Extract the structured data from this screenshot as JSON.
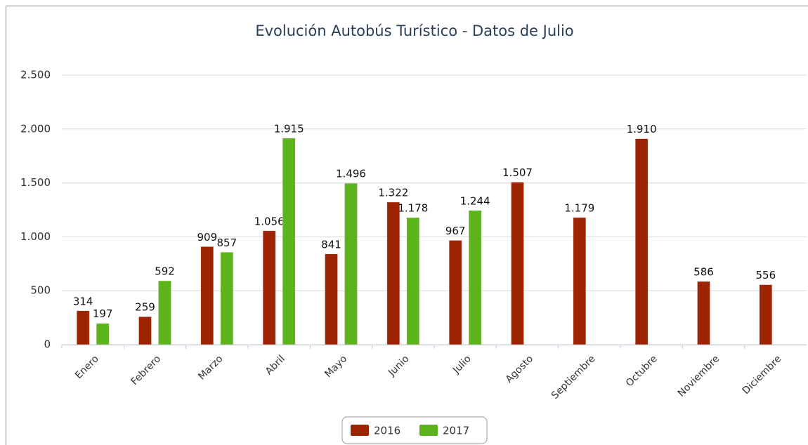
{
  "chart_data": {
    "type": "bar",
    "title": "Evolución Autobús Turístico - Datos de Julio",
    "categories": [
      "Enero",
      "Febrero",
      "Marzo",
      "Abril",
      "Mayo",
      "Junio",
      "Julio",
      "Agosto",
      "Septiembre",
      "Octubre",
      "Noviembre",
      "Diciembre"
    ],
    "series": [
      {
        "name": "2016",
        "color": "#9e2300",
        "values": [
          314,
          259,
          909,
          1056,
          841,
          1322,
          967,
          1507,
          1179,
          1910,
          586,
          556
        ],
        "value_labels": [
          "314",
          "259",
          "909",
          "1.056",
          "841",
          "1.322",
          "967",
          "1.507",
          "1.179",
          "1.910",
          "586",
          "556"
        ]
      },
      {
        "name": "2017",
        "color": "#5db31b",
        "values": [
          197,
          592,
          857,
          1915,
          1496,
          1178,
          1244,
          null,
          null,
          null,
          null,
          null
        ],
        "value_labels": [
          "197",
          "592",
          "857",
          "1.915",
          "1.496",
          "1.178",
          "1.244",
          null,
          null,
          null,
          null,
          null
        ]
      }
    ],
    "ylim": [
      0,
      2500
    ],
    "yticks": [
      {
        "value": 0,
        "label": "0"
      },
      {
        "value": 500,
        "label": "500"
      },
      {
        "value": 1000,
        "label": "1.000"
      },
      {
        "value": 1500,
        "label": "1.500"
      },
      {
        "value": 2000,
        "label": "2.000"
      },
      {
        "value": 2500,
        "label": "2.500"
      }
    ],
    "grid": true,
    "legend": "bottom"
  }
}
